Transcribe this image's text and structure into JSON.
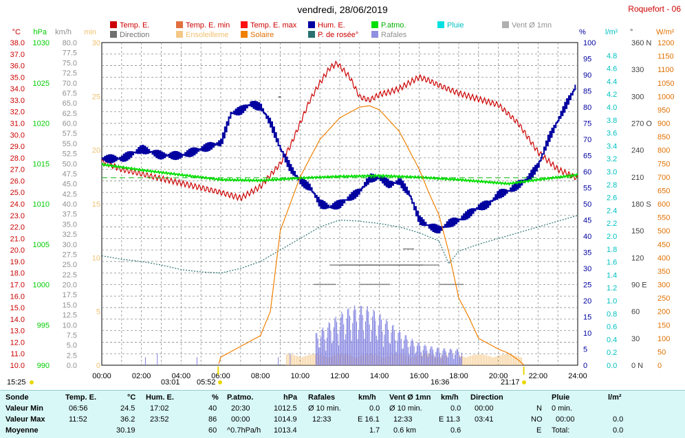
{
  "header": {
    "title": "vendredi, 28/06/2019",
    "station": "Roquefort - 06"
  },
  "legend": [
    {
      "label": "Temp. E.",
      "color": "#cc0000",
      "col": 0,
      "row": 0
    },
    {
      "label": "Direction",
      "color": "#707070",
      "col": 0,
      "row": 1
    },
    {
      "label": "Temp. E. min",
      "color": "#e07040",
      "col": 1,
      "row": 0
    },
    {
      "label": "Ensoleilleme",
      "color": "#f5c888",
      "col": 1,
      "row": 1
    },
    {
      "label": "Temp. E. max",
      "color": "#ff1010",
      "col": 2,
      "row": 0
    },
    {
      "label": "Solaire",
      "color": "#f08000",
      "col": 2,
      "row": 1
    },
    {
      "label": "Hum. E.",
      "color": "#0000a0",
      "col": 3,
      "row": 0
    },
    {
      "label": "P. de rosée°",
      "color": "#2a7070",
      "col": 3,
      "row": 1
    },
    {
      "label": "P.atmo.",
      "color": "#00e000",
      "col": 4,
      "row": 0
    },
    {
      "label": "Rafales",
      "color": "#9090e0",
      "col": 4,
      "row": 1
    },
    {
      "label": "Pluie",
      "color": "#00e0e0",
      "col": 5,
      "row": 0
    },
    {
      "label": "Vent Ø 1mn",
      "color": "#b0b0b0",
      "col": 6,
      "row": 0
    }
  ],
  "axis_units": {
    "temp": "°C",
    "press": "hPa",
    "wind": "km/h",
    "sun": "min",
    "hum": "%",
    "rain": "l/m²",
    "dir": "°",
    "solar": "W/m²"
  },
  "chart_data": {
    "type": "line",
    "xlabel": "",
    "x_ticks": [
      "00:00",
      "02:00",
      "04:00",
      "06:00",
      "08:00",
      "10:00",
      "12:00",
      "14:00",
      "16:00",
      "18:00",
      "20:00",
      "22:00",
      "24:00"
    ],
    "grid": true,
    "axes": {
      "temp": {
        "range": [
          10,
          38
        ],
        "ticks": [
          "38.0",
          "37.0",
          "36.0",
          "35.0",
          "34.0",
          "33.0",
          "32.0",
          "31.0",
          "30.0",
          "29.0",
          "28.0",
          "27.0",
          "26.0",
          "25.0",
          "24.0",
          "23.0",
          "22.0",
          "21.0",
          "20.0",
          "19.0",
          "18.0",
          "17.0",
          "16.0",
          "15.0",
          "14.0",
          "13.0",
          "12.0",
          "11.0",
          "10.0"
        ]
      },
      "press": {
        "range": [
          990,
          1030
        ],
        "ticks": [
          "1030",
          "1025",
          "1020",
          "1015",
          "1010",
          "1005",
          "1000",
          "995",
          "990"
        ]
      },
      "wind": {
        "range": [
          0,
          80
        ],
        "ticks": [
          "80.0",
          "77.5",
          "75.0",
          "72.5",
          "70.0",
          "67.5",
          "65.0",
          "62.5",
          "60.0",
          "57.5",
          "55.0",
          "52.5",
          "50.0",
          "47.5",
          "45.0",
          "42.5",
          "40.0",
          "37.5",
          "35.0",
          "32.5",
          "30.0",
          "27.5",
          "25.0",
          "22.5",
          "20.0",
          "17.5",
          "15.0",
          "12.5",
          "10.0",
          "7.5",
          "5.0",
          "2.5",
          "0.0"
        ]
      },
      "sun": {
        "range": [
          0,
          30
        ],
        "ticks": [
          "30",
          "25",
          "20",
          "15",
          "10",
          "5",
          "0"
        ]
      },
      "hum": {
        "range": [
          0,
          100
        ],
        "ticks": [
          "100",
          "95",
          "90",
          "85",
          "80",
          "75",
          "70",
          "65",
          "60",
          "55",
          "50",
          "45",
          "40",
          "35",
          "30",
          "25",
          "20",
          "15",
          "10",
          "5",
          "0"
        ]
      },
      "rain": {
        "range": [
          0,
          5
        ],
        "ticks": [
          "4.8",
          "4.6",
          "4.4",
          "4.2",
          "4.0",
          "3.8",
          "3.6",
          "3.4",
          "3.2",
          "3.0",
          "2.8",
          "2.6",
          "2.4",
          "2.2",
          "2.0",
          "1.8",
          "1.6",
          "1.4",
          "1.2",
          "1.0",
          "0.8",
          "0.6",
          "0.4",
          "0.2",
          "0.0"
        ]
      },
      "dir": {
        "range": [
          0,
          360
        ],
        "ticks": [
          "360 N",
          "330",
          "300",
          "270 O",
          "240",
          "210",
          "180 S",
          "150",
          "120",
          "90 E",
          "60",
          "30",
          "0 N"
        ]
      },
      "solar": {
        "range": [
          0,
          1200
        ],
        "ticks": [
          "1200",
          "1150",
          "1100",
          "1050",
          "1000",
          "950",
          "900",
          "850",
          "800",
          "750",
          "700",
          "650",
          "600",
          "550",
          "500",
          "450",
          "400",
          "350",
          "300",
          "250",
          "200",
          "150",
          "100",
          "50",
          "0"
        ]
      }
    },
    "series": [
      {
        "name": "Temp. E.",
        "axis": "temp",
        "color": "#cc0000",
        "x": [
          0,
          1,
          2,
          3,
          4,
          5,
          6,
          7,
          8,
          9,
          9.5,
          10,
          10.5,
          11,
          11.5,
          11.87,
          12.5,
          13,
          13.5,
          14,
          14.5,
          15,
          15.5,
          16,
          16.5,
          17,
          18,
          19,
          20,
          21,
          22,
          23,
          24
        ],
        "y": [
          27.7,
          27.0,
          26.6,
          26.2,
          25.8,
          25.4,
          25.0,
          24.5,
          25.5,
          27.5,
          29.0,
          31.0,
          33.0,
          34.5,
          35.8,
          36.2,
          35.0,
          33.3,
          33.0,
          33.5,
          33.7,
          34.0,
          34.5,
          35.0,
          34.7,
          34.3,
          33.6,
          33.1,
          32.6,
          31.0,
          28.5,
          27.0,
          26.2
        ]
      },
      {
        "name": "Hum. E.",
        "axis": "hum",
        "color": "#0000a0",
        "x": [
          0,
          1,
          2,
          3,
          4,
          5,
          6,
          6.5,
          7,
          7.5,
          8,
          8.5,
          9,
          9.5,
          10,
          10.5,
          11,
          11.5,
          12,
          12.5,
          13,
          13.5,
          14,
          14.5,
          15,
          15.5,
          16,
          16.5,
          17,
          17.5,
          18,
          18.5,
          19,
          19.5,
          20,
          20.5,
          21,
          21.5,
          22,
          22.5,
          23,
          23.5,
          23.87
        ],
        "y": [
          64,
          64,
          67,
          65,
          65,
          67,
          69,
          78,
          79,
          81,
          80,
          75,
          67,
          61,
          57,
          55,
          50,
          49,
          50,
          52,
          54,
          58,
          58,
          56,
          57,
          53,
          45,
          43,
          42,
          44,
          45,
          47,
          49,
          50,
          53,
          54,
          56,
          58,
          62,
          70,
          76,
          82,
          86
        ]
      },
      {
        "name": "P.atmo.",
        "axis": "press",
        "color": "#00e000",
        "x": [
          0,
          2,
          4,
          6,
          8,
          10,
          12,
          14,
          16,
          18,
          20,
          20.5,
          22,
          24
        ],
        "y": [
          1014.9,
          1014.2,
          1013.6,
          1013.0,
          1012.9,
          1013.2,
          1013.4,
          1013.5,
          1013.3,
          1013.0,
          1012.6,
          1012.5,
          1013.0,
          1013.6
        ]
      },
      {
        "name": "P. de rosée°",
        "axis": "temp",
        "color": "#2a7070",
        "x": [
          0,
          1,
          2,
          3,
          4,
          5,
          6,
          7,
          8,
          9,
          10,
          11,
          12,
          13,
          14,
          15,
          16,
          17,
          17.5,
          18,
          19,
          20,
          21,
          22,
          23,
          24
        ],
        "y": [
          19.5,
          19.2,
          19.0,
          18.7,
          18.3,
          18.1,
          18.0,
          18.4,
          19.0,
          20.0,
          21.0,
          22.0,
          22.6,
          22.5,
          22.3,
          22.0,
          21.5,
          20.8,
          18.8,
          19.9,
          20.5,
          21.0,
          21.5,
          22.0,
          22.5,
          23.0
        ]
      },
      {
        "name": "Solaire",
        "axis": "solar",
        "color": "#f08000",
        "x": [
          5.9,
          6,
          7,
          8,
          8.5,
          9,
          10,
          11,
          12,
          13,
          13.5,
          14,
          15,
          16,
          16.5,
          17,
          17.5,
          18,
          18.5,
          19,
          19.5,
          20,
          20.5,
          21,
          21.3
        ],
        "y": [
          5,
          30,
          70,
          110,
          200,
          500,
          700,
          840,
          920,
          960,
          965,
          950,
          870,
          730,
          640,
          560,
          420,
          250,
          180,
          100,
          80,
          60,
          45,
          20,
          0
        ]
      }
    ],
    "stats": {
      "sonde": {
        "label": "Sonde",
        "rows": [
          "Valeur Min",
          "Valeur Max",
          "Moyenne"
        ]
      },
      "temp": {
        "label": "Temp. E.",
        "unit": "°C",
        "min_time": "06:56",
        "min": "24.5",
        "max_time": "11:52",
        "max": "36.2",
        "avg": "30.19"
      },
      "hum": {
        "label": "Hum. E.",
        "unit": "%",
        "min_time": "17:02",
        "min": "40",
        "max_time": "23:52",
        "max": "86",
        "avg": "60"
      },
      "press": {
        "label": "P.atmo.",
        "unit": "hPa",
        "min_time": "20:30",
        "min": "1012.5",
        "max_time": "00:00",
        "max": "1014.9",
        "avg_label": "^0.7hPa/h",
        "avg": "1013.4"
      },
      "gust": {
        "label": "Rafales",
        "unit": "km/h",
        "min_label": "Ø 10 min.",
        "min": "0.0",
        "max_time": "12:33",
        "max": "E 16.1",
        "avg": "1.7"
      },
      "wind": {
        "label": "Vent Ø 1mn",
        "unit": "km/h",
        "min_label": "Ø 10 min.",
        "min": "0.0",
        "max_time": "12:33",
        "max": "E 11.3",
        "avg_label": "0.6 km",
        "avg": "0.6"
      },
      "dir": {
        "label": "Direction",
        "min_time": "00:00",
        "min": "N",
        "max_time": "03:41",
        "max": "NO",
        "avg": "E"
      },
      "rain": {
        "label": "Pluie",
        "unit": "l/m²",
        "min_label": "0 min.",
        "max_time": "00:00",
        "max": "0.0",
        "avg_label": "Total:",
        "avg": "0.0"
      }
    }
  },
  "bottom_markers": {
    "left_time": "15:25",
    "moonrise": "03:01",
    "sunrise": "05:52",
    "noon": "16:36",
    "sunset": "21:17"
  }
}
